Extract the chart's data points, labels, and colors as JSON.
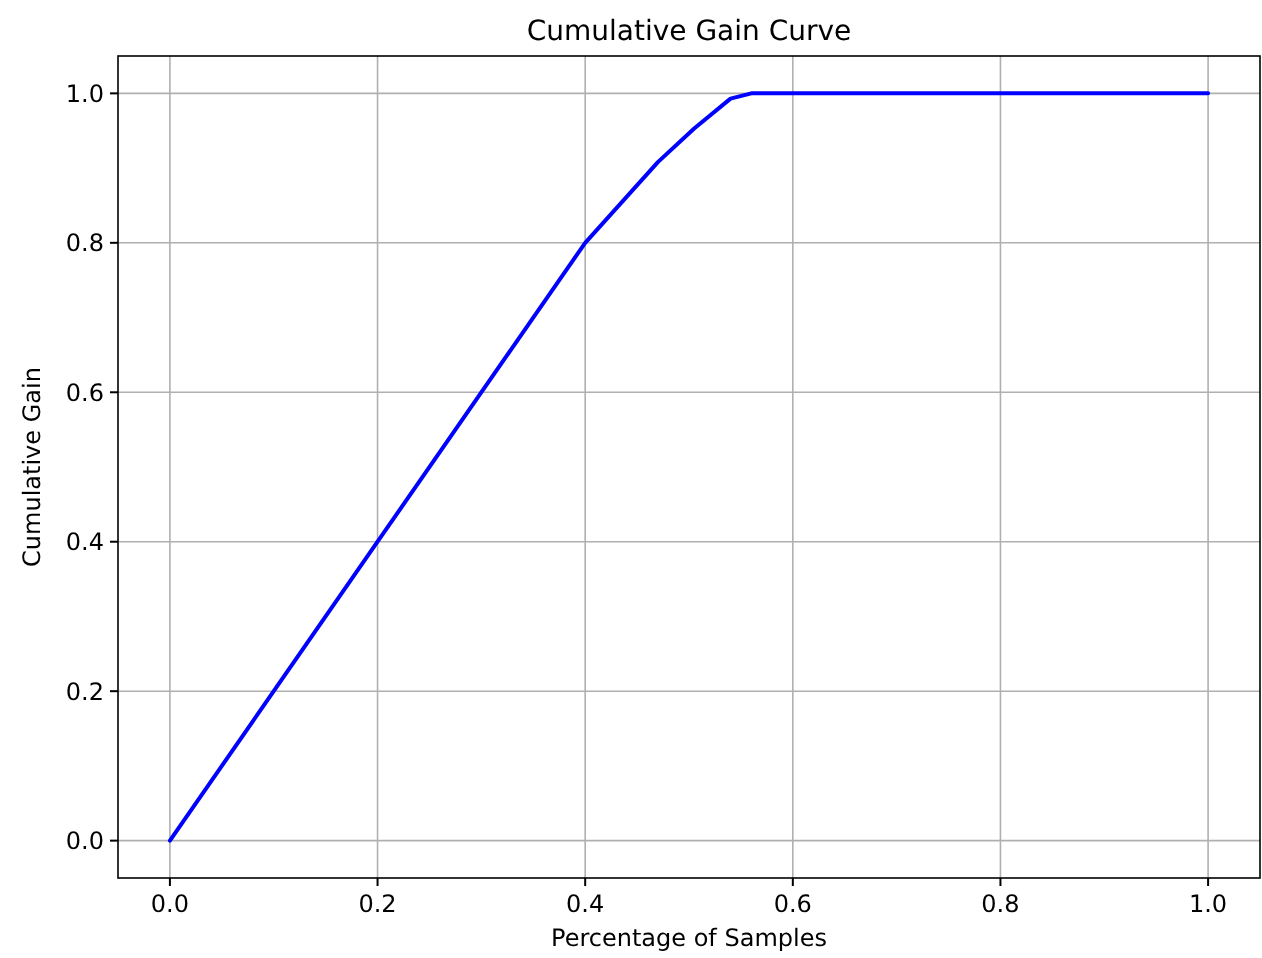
{
  "chart_data": {
    "type": "line",
    "title": "Cumulative Gain Curve",
    "xlabel": "Percentage of Samples",
    "ylabel": "Cumulative Gain",
    "series": [
      {
        "color": "#0000ff",
        "x": [
          0,
          0.2,
          0.4,
          0.47,
          0.505,
          0.54,
          0.56,
          1.0
        ],
        "values": [
          0,
          0.4,
          0.8,
          0.908,
          0.953,
          0.993,
          1.0,
          1.0
        ]
      }
    ],
    "xlim": [
      -0.05,
      1.05
    ],
    "ylim": [
      -0.05,
      1.05
    ],
    "xticks": [
      {
        "value": 0,
        "label": "0.0"
      },
      {
        "value": 0.2,
        "label": "0.2"
      },
      {
        "value": 0.4,
        "label": "0.4"
      },
      {
        "value": 0.6,
        "label": "0.6"
      },
      {
        "value": 0.8,
        "label": "0.8"
      },
      {
        "value": 1,
        "label": "1.0"
      }
    ],
    "yticks": [
      {
        "value": 0,
        "label": "0.0"
      },
      {
        "value": 0.2,
        "label": "0.2"
      },
      {
        "value": 0.4,
        "label": "0.4"
      },
      {
        "value": 0.6,
        "label": "0.6"
      },
      {
        "value": 0.8,
        "label": "0.8"
      },
      {
        "value": 1,
        "label": "1.0"
      }
    ],
    "grid": true,
    "line_style": "solid"
  }
}
